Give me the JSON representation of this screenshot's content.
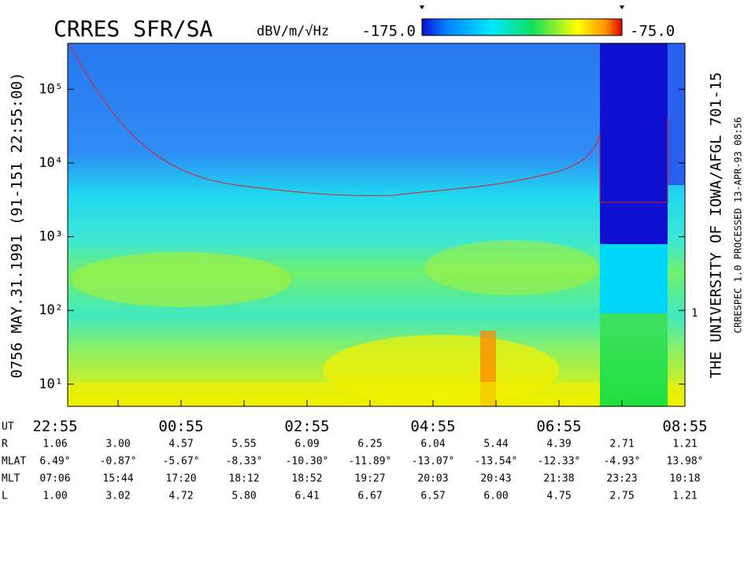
{
  "chart_data": {
    "type": "spectrogram",
    "title": "CRRES SFR/SA",
    "colorbar": {
      "units": "dBV/m/√Hz",
      "min": {
        "value": -175,
        "label": "-175.0"
      },
      "max": {
        "value": -75,
        "label": "-75.0"
      }
    },
    "left_caption": "0756  MAY.31.1991  (91-151 22:55:00)",
    "right_caption": "THE UNIVERSITY OF IOWA/AFGL 701-15",
    "right_caption_small": "CRRESPEC 1.0   PROCESSED 13-APR-93  08:56",
    "right_tick_label": "1",
    "log_y": true,
    "ylim": [
      5,
      420000
    ],
    "yticks": [
      {
        "value": 10,
        "label": "10¹"
      },
      {
        "value": 100,
        "label": "10²"
      },
      {
        "value": 1000,
        "label": "10³"
      },
      {
        "value": 10000,
        "label": "10⁴"
      },
      {
        "value": 100000,
        "label": "10⁵"
      }
    ],
    "table": {
      "rows": [
        {
          "label": "UT",
          "cells": [
            "22:55",
            "00:55",
            "02:55",
            "04:55",
            "06:55",
            "08:55"
          ]
        },
        {
          "label": "R",
          "cells": [
            "1.06",
            "3.00",
            "4.57",
            "5.55",
            "6.09",
            "6.25",
            "6.04",
            "5.44",
            "4.39",
            "2.71",
            "1.21"
          ]
        },
        {
          "label": "MLAT",
          "cells": [
            "6.49°",
            "-0.87°",
            "-5.67°",
            "-8.33°",
            "-10.30°",
            "-11.89°",
            "-13.07°",
            "-13.54°",
            "-12.33°",
            "-4.93°",
            "13.98°"
          ]
        },
        {
          "label": "MLT",
          "cells": [
            "07:06",
            "15:44",
            "17:20",
            "18:12",
            "18:52",
            "19:27",
            "20:03",
            "20:43",
            "21:38",
            "23:23",
            "10:18"
          ]
        },
        {
          "label": "L",
          "cells": [
            "1.00",
            "3.02",
            "4.72",
            "5.80",
            "6.41",
            "6.67",
            "6.57",
            "6.00",
            "4.75",
            "2.75",
            "1.21"
          ]
        }
      ]
    }
  }
}
